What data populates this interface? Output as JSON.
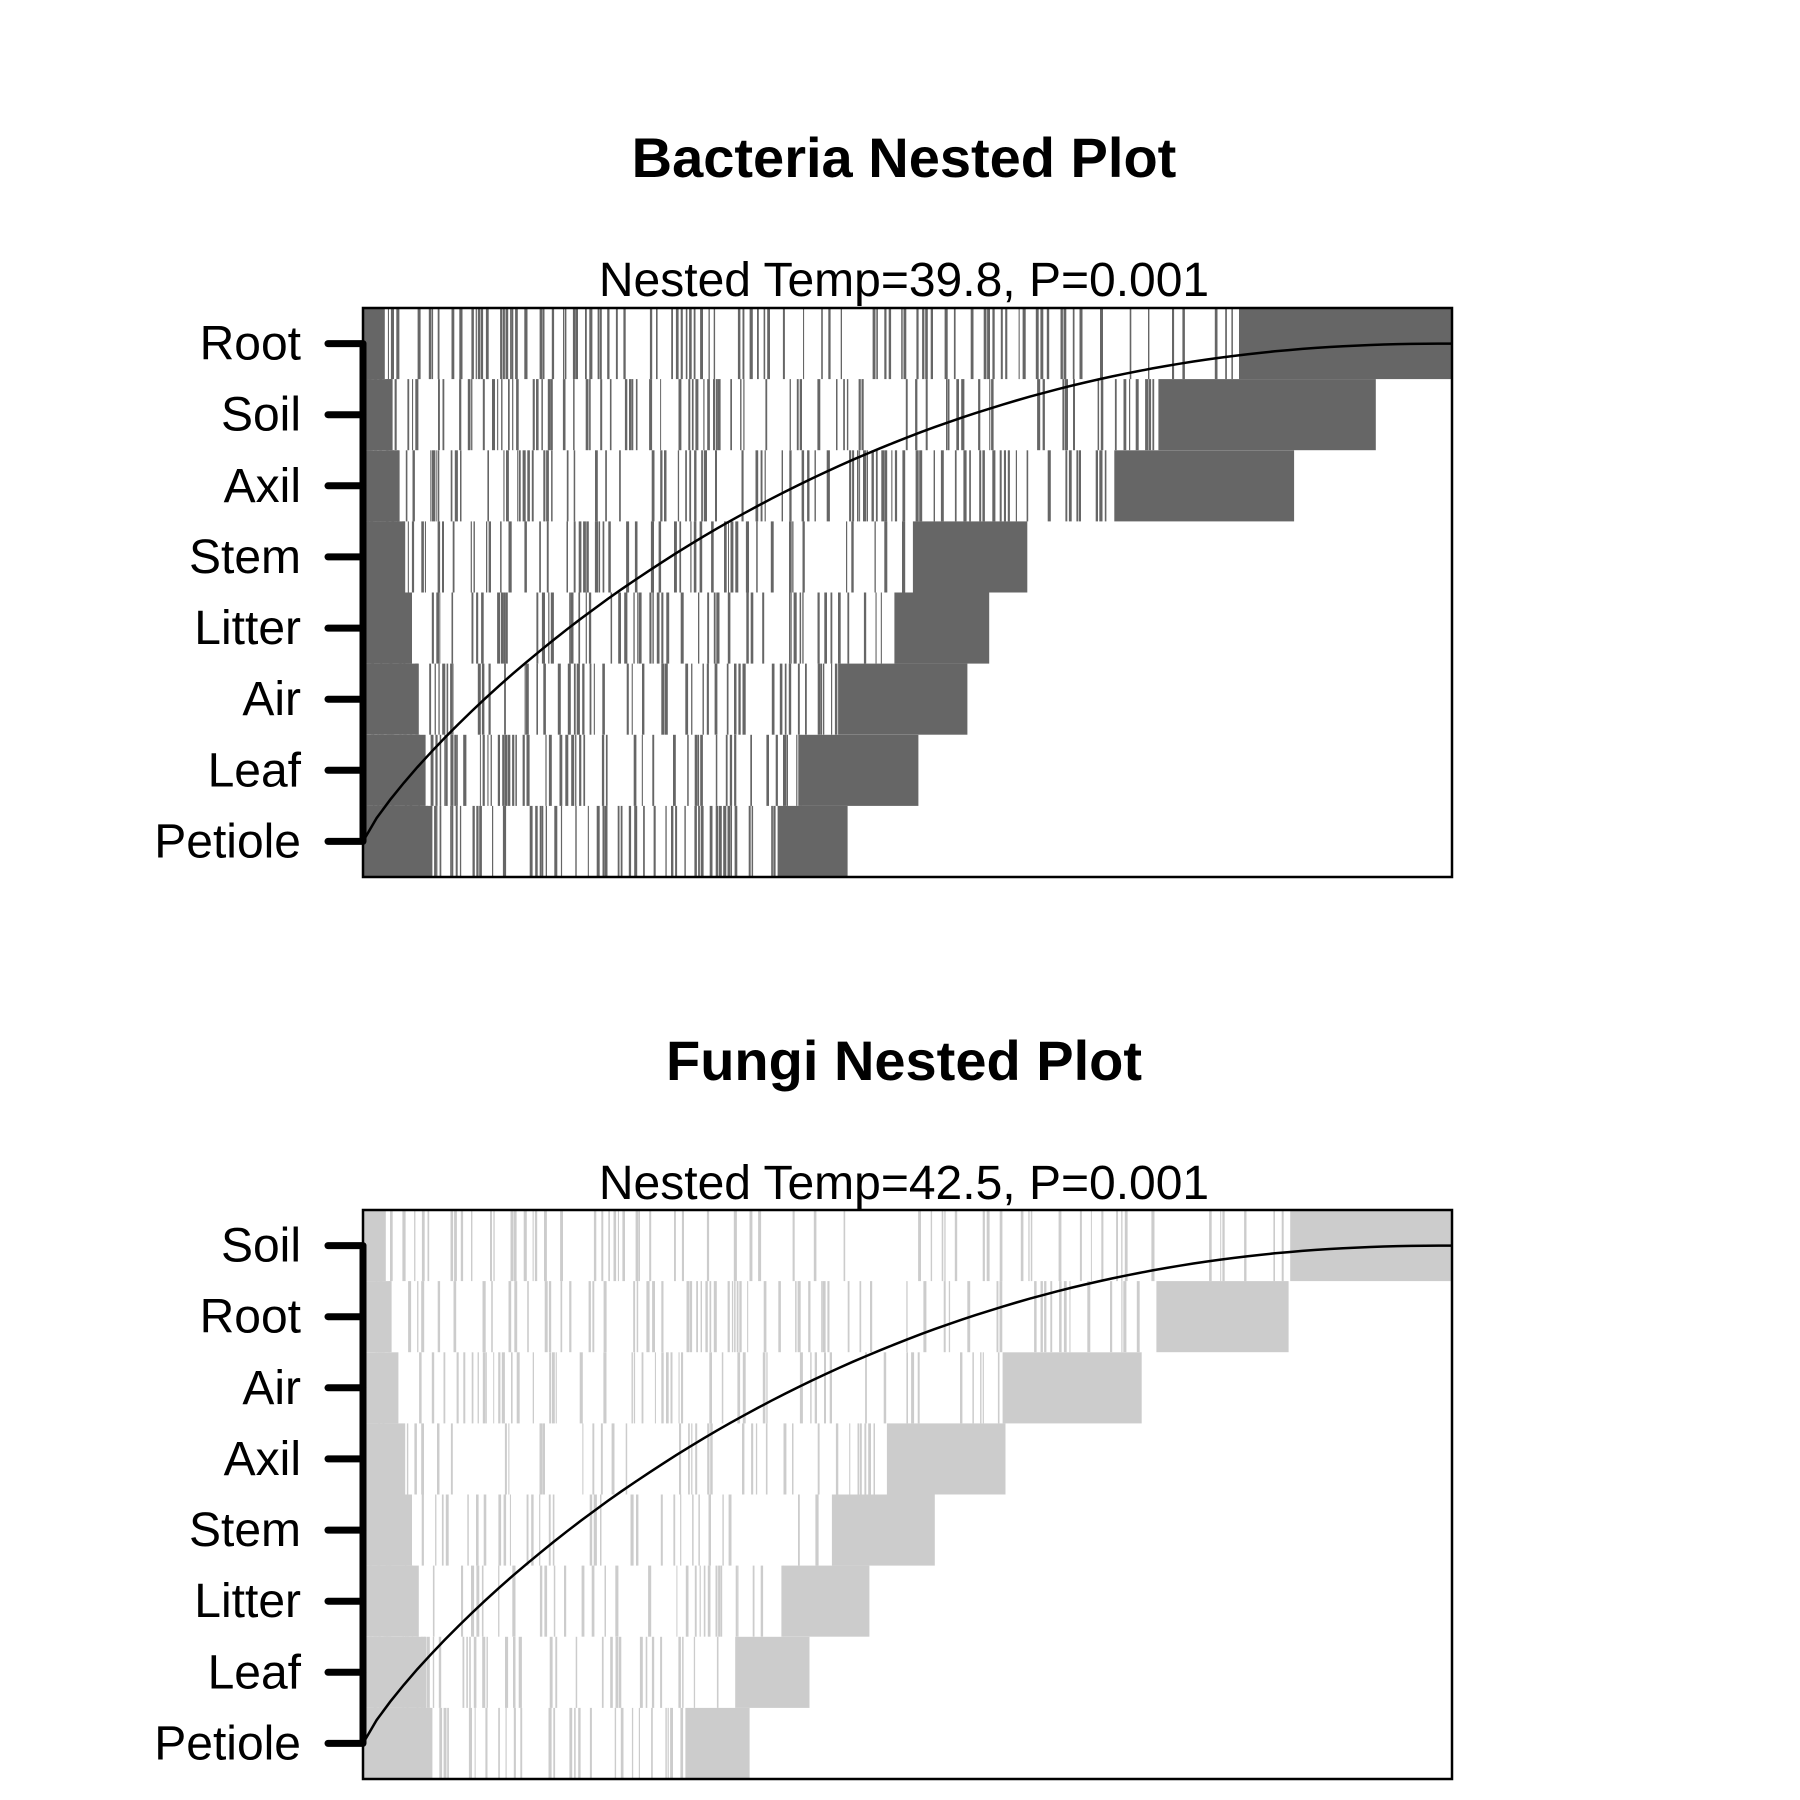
{
  "chart_data": [
    {
      "type": "heatmap",
      "title": "Bacteria Nested Plot",
      "subtitle": "Nested Temp=39.8, P=0.001",
      "fill_color": "#666666",
      "rows": [
        "Root",
        "Soil",
        "Axil",
        "Stem",
        "Litter",
        "Air",
        "Leaf",
        "Petiole"
      ],
      "row_fill_extent": [
        1.0,
        0.93,
        0.855,
        0.61,
        0.575,
        0.555,
        0.51,
        0.445
      ],
      "xlabel": "",
      "ylabel": "",
      "legend": "none",
      "fit_curve": "nestedness isocline"
    },
    {
      "type": "heatmap",
      "title": "Fungi Nested Plot",
      "subtitle": "Nested Temp=42.5, P=0.001",
      "fill_color": "#cccccc",
      "rows": [
        "Soil",
        "Root",
        "Air",
        "Axil",
        "Stem",
        "Litter",
        "Leaf",
        "Petiole"
      ],
      "row_fill_extent": [
        1.0,
        0.85,
        0.715,
        0.59,
        0.525,
        0.465,
        0.41,
        0.355
      ],
      "xlabel": "",
      "ylabel": "",
      "legend": "none",
      "fit_curve": "nestedness isocline"
    }
  ]
}
